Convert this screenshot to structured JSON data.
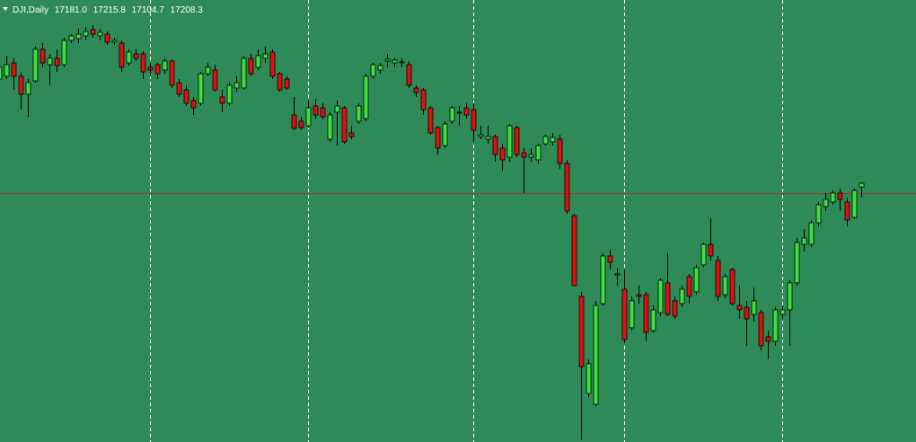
{
  "chart_data": {
    "type": "candlestick",
    "title": "DJI,Daily",
    "last_bar_labels": {
      "open": "17181.0",
      "high": "17215.8",
      "low": "17104.7",
      "close": "17208.3"
    },
    "ylim": [
      15336,
      18534
    ],
    "up_color": "#3ee03e",
    "down_color": "#e01010",
    "wick_color": "#000000",
    "background": "#2e8b57",
    "bid_line": 17137,
    "bid_line_color": "#b0302a",
    "open": [
      17962,
      17982,
      18079,
      17982,
      17852,
      17949,
      18177,
      18066,
      18112,
      18066,
      18242,
      18255,
      18274,
      18320,
      18274,
      18287,
      18229,
      18222,
      18079,
      18144,
      18144,
      18047,
      18066,
      18027,
      18092,
      17936,
      17884,
      17806,
      17787,
      18001,
      18027,
      17832,
      17787,
      17897,
      17897,
      18112,
      18047,
      18112,
      18157,
      18001,
      17962,
      17702,
      17657,
      17624,
      17767,
      17754,
      17527,
      17722,
      17754,
      17572,
      17657,
      17676,
      17982,
      18027,
      18092,
      18079,
      18079,
      18066,
      17897,
      17884,
      17754,
      17611,
      17481,
      17657,
      17722,
      17754,
      17741,
      17546,
      17527,
      17546,
      17462,
      17397,
      17611,
      17429,
      17397,
      17377,
      17494,
      17507,
      17527,
      17351,
      16974,
      16389,
      15687,
      15609,
      16337,
      16682,
      16552,
      16441,
      16162,
      16402,
      16402,
      16142,
      16272,
      16487,
      16357,
      16337,
      16532,
      16422,
      16617,
      16766,
      16649,
      16402,
      16584,
      16324,
      16311,
      16259,
      16272,
      16097,
      16064,
      16259,
      16292,
      16487,
      16766,
      16766,
      16922,
      17039,
      17072,
      17137,
      17072,
      16961,
      17181
    ],
    "high": [
      18092,
      18131,
      18112,
      18014,
      17962,
      18196,
      18222,
      18144,
      18177,
      18261,
      18287,
      18326,
      18339,
      18352,
      18326,
      18307,
      18261,
      18242,
      18177,
      18177,
      18164,
      18079,
      18079,
      18112,
      18105,
      17962,
      17917,
      17832,
      18014,
      18079,
      18066,
      17884,
      17936,
      17982,
      18131,
      18144,
      18177,
      18196,
      18177,
      18014,
      17982,
      17832,
      17689,
      17806,
      17819,
      17787,
      17722,
      17806,
      17767,
      17624,
      17787,
      18001,
      18079,
      18079,
      18144,
      18112,
      18112,
      18092,
      17917,
      17897,
      17767,
      17624,
      17657,
      17767,
      17767,
      17787,
      17787,
      17624,
      17624,
      17559,
      17494,
      17637,
      17624,
      17462,
      17462,
      17494,
      17559,
      17572,
      17559,
      17377,
      16987,
      16422,
      15934,
      16357,
      16701,
      16727,
      16597,
      16584,
      16389,
      16467,
      16422,
      16324,
      16519,
      16701,
      16389,
      16467,
      16552,
      16617,
      16779,
      16955,
      16682,
      16552,
      16597,
      16467,
      16357,
      16454,
      16292,
      16142,
      16311,
      16324,
      16506,
      16812,
      16877,
      16942,
      17072,
      17137,
      17156,
      17169,
      17104,
      17169,
      17215.8
    ],
    "low": [
      17871,
      17962,
      17884,
      17741,
      17689,
      17936,
      18047,
      17917,
      18014,
      18047,
      18222,
      18222,
      18242,
      18261,
      18242,
      18209,
      18209,
      18014,
      18060,
      18092,
      17962,
      17982,
      17962,
      18001,
      17897,
      17832,
      17767,
      17702,
      17767,
      17982,
      17871,
      17722,
      17767,
      17871,
      17884,
      17982,
      18027,
      18079,
      17962,
      17871,
      17884,
      17592,
      17592,
      17611,
      17676,
      17670,
      17507,
      17481,
      17494,
      17527,
      17637,
      17657,
      17962,
      18001,
      18047,
      18047,
      18047,
      17897,
      17832,
      17702,
      17559,
      17416,
      17462,
      17637,
      17624,
      17676,
      17507,
      17527,
      17494,
      17364,
      17299,
      17364,
      17397,
      17137,
      17364,
      17351,
      17481,
      17481,
      17312,
      16987,
      16467,
      15349,
      15661,
      15596,
      16324,
      16584,
      16467,
      16051,
      16142,
      16337,
      16064,
      16129,
      16246,
      16246,
      16227,
      16311,
      16337,
      16402,
      16597,
      16649,
      16357,
      16376,
      16324,
      16227,
      16032,
      16207,
      15999,
      15934,
      16032,
      16227,
      16032,
      16467,
      16714,
      16747,
      16896,
      17007,
      17052,
      17007,
      16896,
      16948,
      17104.7
    ],
    "close": [
      18047,
      18066,
      17982,
      17852,
      17936,
      18177,
      18079,
      18112,
      18060,
      18242,
      18274,
      18287,
      18307,
      18287,
      18300,
      18229,
      18242,
      18047,
      18157,
      18112,
      18014,
      18027,
      18001,
      18092,
      17917,
      17852,
      17787,
      17754,
      18001,
      18047,
      17884,
      17787,
      17917,
      17936,
      18112,
      18001,
      18131,
      18144,
      17982,
      17884,
      17897,
      17605,
      17611,
      17754,
      17702,
      17689,
      17702,
      17767,
      17507,
      17546,
      17767,
      17982,
      18066,
      18060,
      18105,
      18099,
      18086,
      17917,
      17865,
      17741,
      17572,
      17462,
      17637,
      17754,
      17715,
      17702,
      17592,
      17559,
      17546,
      17416,
      17377,
      17624,
      17416,
      17397,
      17416,
      17481,
      17546,
      17540,
      17351,
      17007,
      16467,
      15882,
      15902,
      16324,
      16682,
      16636,
      16545,
      16077,
      16357,
      16389,
      16129,
      16292,
      16506,
      16259,
      16246,
      16441,
      16389,
      16597,
      16766,
      16682,
      16389,
      16532,
      16337,
      16292,
      16227,
      16357,
      16032,
      16064,
      16292,
      16292,
      16487,
      16779,
      16812,
      16922,
      17052,
      17091,
      17137,
      17091,
      16942,
      17156,
      17208.3
    ]
  }
}
